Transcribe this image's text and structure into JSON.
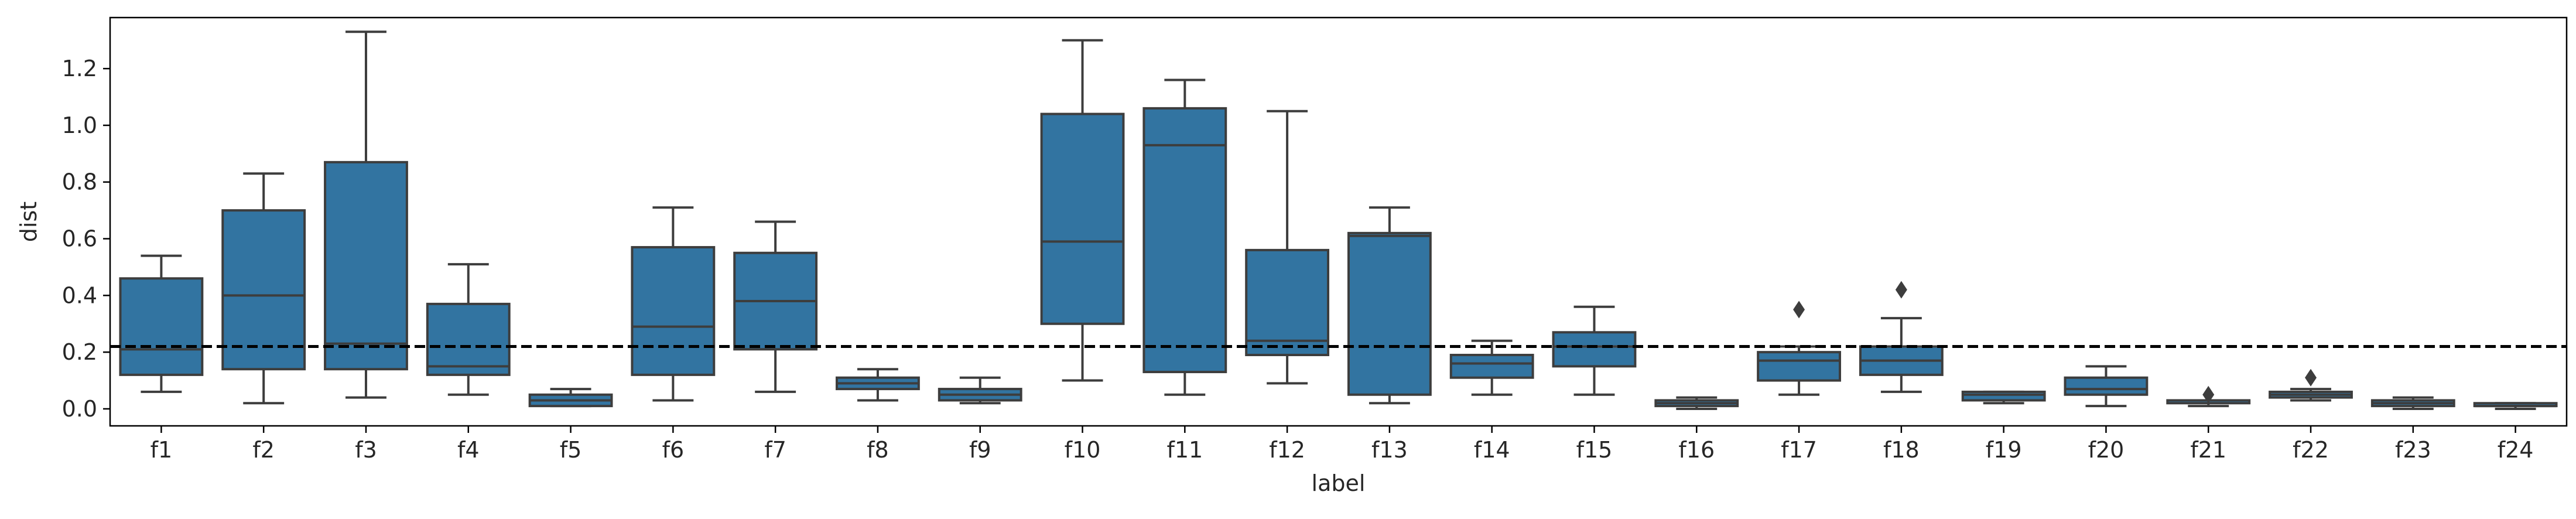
{
  "chart_data": {
    "type": "box",
    "xlabel": "label",
    "ylabel": "dist",
    "ylim": [
      -0.06,
      1.38
    ],
    "yticks": [
      0.0,
      0.2,
      0.4,
      0.6,
      0.8,
      1.0,
      1.2
    ],
    "ytick_labels": [
      "0.0",
      "0.2",
      "0.4",
      "0.6",
      "0.8",
      "1.0",
      "1.2"
    ],
    "box_color": "#3274a1",
    "line_color": "#3d3d3d",
    "reference_line": {
      "y": 0.22,
      "style": "dashed",
      "color": "#000000"
    },
    "grid": false,
    "legend": "none",
    "categories": [
      "f1",
      "f2",
      "f3",
      "f4",
      "f5",
      "f6",
      "f7",
      "f8",
      "f9",
      "f10",
      "f11",
      "f12",
      "f13",
      "f14",
      "f15",
      "f16",
      "f17",
      "f18",
      "f19",
      "f20",
      "f21",
      "f22",
      "f23",
      "f24"
    ],
    "boxes": [
      {
        "label": "f1",
        "whislo": 0.06,
        "q1": 0.12,
        "med": 0.21,
        "q3": 0.46,
        "whishi": 0.54,
        "fliers": []
      },
      {
        "label": "f2",
        "whislo": 0.02,
        "q1": 0.14,
        "med": 0.4,
        "q3": 0.7,
        "whishi": 0.83,
        "fliers": []
      },
      {
        "label": "f3",
        "whislo": 0.04,
        "q1": 0.14,
        "med": 0.23,
        "q3": 0.87,
        "whishi": 1.33,
        "fliers": []
      },
      {
        "label": "f4",
        "whislo": 0.05,
        "q1": 0.12,
        "med": 0.15,
        "q3": 0.37,
        "whishi": 0.51,
        "fliers": []
      },
      {
        "label": "f5",
        "whislo": 0.01,
        "q1": 0.01,
        "med": 0.03,
        "q3": 0.05,
        "whishi": 0.07,
        "fliers": []
      },
      {
        "label": "f6",
        "whislo": 0.03,
        "q1": 0.12,
        "med": 0.29,
        "q3": 0.57,
        "whishi": 0.71,
        "fliers": []
      },
      {
        "label": "f7",
        "whislo": 0.06,
        "q1": 0.21,
        "med": 0.38,
        "q3": 0.55,
        "whishi": 0.66,
        "fliers": []
      },
      {
        "label": "f8",
        "whislo": 0.03,
        "q1": 0.07,
        "med": 0.09,
        "q3": 0.11,
        "whishi": 0.14,
        "fliers": []
      },
      {
        "label": "f9",
        "whislo": 0.02,
        "q1": 0.03,
        "med": 0.05,
        "q3": 0.07,
        "whishi": 0.11,
        "fliers": []
      },
      {
        "label": "f10",
        "whislo": 0.1,
        "q1": 0.3,
        "med": 0.59,
        "q3": 1.04,
        "whishi": 1.3,
        "fliers": []
      },
      {
        "label": "f11",
        "whislo": 0.05,
        "q1": 0.13,
        "med": 0.93,
        "q3": 1.06,
        "whishi": 1.16,
        "fliers": []
      },
      {
        "label": "f12",
        "whislo": 0.09,
        "q1": 0.19,
        "med": 0.24,
        "q3": 0.56,
        "whishi": 1.05,
        "fliers": []
      },
      {
        "label": "f13",
        "whislo": 0.02,
        "q1": 0.05,
        "med": 0.61,
        "q3": 0.62,
        "whishi": 0.71,
        "fliers": []
      },
      {
        "label": "f14",
        "whislo": 0.05,
        "q1": 0.11,
        "med": 0.16,
        "q3": 0.19,
        "whishi": 0.24,
        "fliers": []
      },
      {
        "label": "f15",
        "whislo": 0.05,
        "q1": 0.15,
        "med": 0.22,
        "q3": 0.27,
        "whishi": 0.36,
        "fliers": []
      },
      {
        "label": "f16",
        "whislo": 0.0,
        "q1": 0.01,
        "med": 0.02,
        "q3": 0.03,
        "whishi": 0.04,
        "fliers": []
      },
      {
        "label": "f17",
        "whislo": 0.05,
        "q1": 0.1,
        "med": 0.17,
        "q3": 0.2,
        "whishi": 0.22,
        "fliers": [
          0.35
        ]
      },
      {
        "label": "f18",
        "whislo": 0.06,
        "q1": 0.12,
        "med": 0.17,
        "q3": 0.22,
        "whishi": 0.32,
        "fliers": [
          0.42
        ]
      },
      {
        "label": "f19",
        "whislo": 0.02,
        "q1": 0.03,
        "med": 0.05,
        "q3": 0.06,
        "whishi": 0.06,
        "fliers": []
      },
      {
        "label": "f20",
        "whislo": 0.01,
        "q1": 0.05,
        "med": 0.07,
        "q3": 0.11,
        "whishi": 0.15,
        "fliers": []
      },
      {
        "label": "f21",
        "whislo": 0.01,
        "q1": 0.02,
        "med": 0.03,
        "q3": 0.03,
        "whishi": 0.03,
        "fliers": [
          0.05
        ]
      },
      {
        "label": "f22",
        "whislo": 0.03,
        "q1": 0.04,
        "med": 0.05,
        "q3": 0.06,
        "whishi": 0.07,
        "fliers": [
          0.11
        ]
      },
      {
        "label": "f23",
        "whislo": 0.0,
        "q1": 0.01,
        "med": 0.02,
        "q3": 0.03,
        "whishi": 0.04,
        "fliers": []
      },
      {
        "label": "f24",
        "whislo": 0.0,
        "q1": 0.01,
        "med": 0.01,
        "q3": 0.02,
        "whishi": 0.02,
        "fliers": []
      }
    ]
  }
}
